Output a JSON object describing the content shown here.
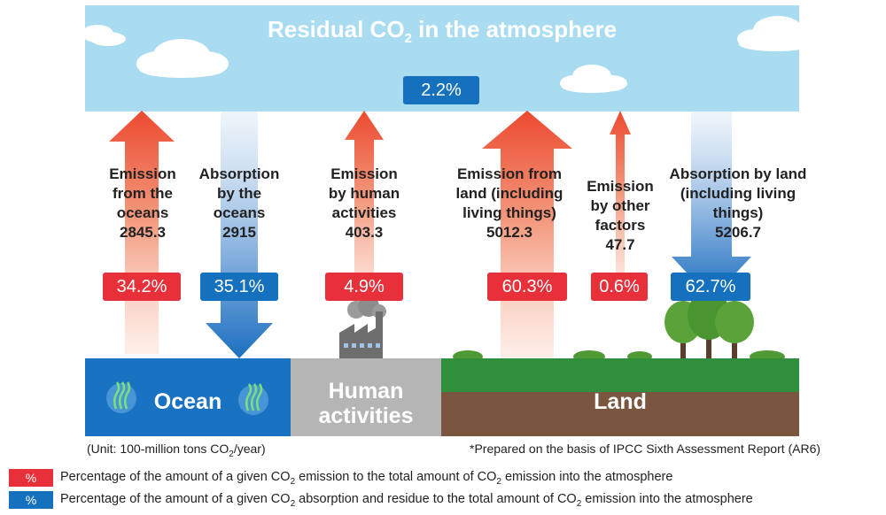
{
  "sky": {
    "title_pre": "Residual CO",
    "title_sub": "2",
    "title_post": " in the atmosphere",
    "residual_pct": "2.2%"
  },
  "flows": [
    {
      "label_lines": [
        "Emission",
        "from the",
        "oceans"
      ],
      "value": "2845.3",
      "pct": "34.2%"
    },
    {
      "label_lines": [
        "Absorption",
        "by the",
        "oceans"
      ],
      "value": "2915",
      "pct": "35.1%"
    },
    {
      "label_lines": [
        "Emission",
        "by human",
        "activities"
      ],
      "value": "403.3",
      "pct": "4.9%"
    },
    {
      "label_lines": [
        "Emission from",
        "land (including",
        "living things)"
      ],
      "value": "5012.3",
      "pct": "60.3%"
    },
    {
      "label_lines": [
        "Emission",
        "by other",
        "factors"
      ],
      "value": "47.7",
      "pct": "0.6%"
    },
    {
      "label_lines": [
        "Absorption by land",
        "(including living",
        "things)"
      ],
      "value": "5206.7",
      "pct": "62.7%"
    }
  ],
  "ground": {
    "ocean": "Ocean",
    "human_1": "Human",
    "human_2": "activities",
    "land": "Land"
  },
  "footer": {
    "unit_pre": "(Unit: 100-million tons CO",
    "unit_sub": "2",
    "unit_post": "/year)",
    "source": "*Prepared on the basis of IPCC Sixth Assessment Report (AR6)"
  },
  "legend": {
    "symbol": "%",
    "red_pre": "Percentage of the amount of a given CO",
    "red_sub": "2",
    "red_post": " emission to the total amount of CO",
    "red_sub2": "2",
    "red_post2": " emission into the atmosphere",
    "blue_pre": "Percentage of the amount of a given CO",
    "blue_sub": "2",
    "blue_post": " absorption and residue to the total amount of CO",
    "blue_sub2": "2",
    "blue_post2": " emission into the atmosphere"
  },
  "colors": {
    "emission": "#e8303a",
    "absorption": "#1570bd",
    "sky": "#a9dcf0",
    "ocean": "#1a72c2",
    "human": "#b5b5b5",
    "grass": "#2f8f3c",
    "soil": "#7a5640"
  }
}
